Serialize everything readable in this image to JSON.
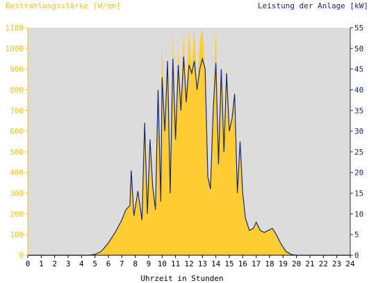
{
  "chart_data": {
    "type": "area",
    "title": "",
    "left_axis_label": "Bestrahlungsstärke [W/qm]",
    "right_axis_label": "Leistung der Anlage [kW]",
    "xlabel": "Uhrzeit in Stunden",
    "xlim": [
      0,
      24
    ],
    "ylim_left": [
      0,
      1100
    ],
    "ylim_right": [
      0,
      55
    ],
    "x_ticks": [
      "0",
      "1",
      "2",
      "3",
      "4",
      "5",
      "6",
      "7",
      "8",
      "9",
      "10",
      "11",
      "12",
      "13",
      "14",
      "15",
      "16",
      "17",
      "18",
      "19",
      "20",
      "21",
      "22",
      "23",
      "24"
    ],
    "y_left_ticks": [
      "0",
      "100",
      "200",
      "300",
      "400",
      "500",
      "600",
      "700",
      "800",
      "900",
      "1000",
      "1100"
    ],
    "y_right_ticks": [
      "0",
      "5",
      "10",
      "15",
      "20",
      "25",
      "30",
      "35",
      "40",
      "45",
      "50",
      "55"
    ],
    "grid": false,
    "colors": {
      "plot_background": "#dcdcdc",
      "irradiance_fill": "#ffcc33",
      "power_line": "#1a2a6c",
      "left_axis_text": "#f0c020",
      "right_axis_text": "#1a2a6c",
      "axis": "#000000"
    },
    "series": [
      {
        "name": "Bestrahlungsstärke [W/qm]",
        "axis": "left",
        "style": "filled-area",
        "x": [
          0,
          4.5,
          5,
          5.5,
          6,
          6.5,
          7,
          7.3,
          7.6,
          7.7,
          7.9,
          8.2,
          8.5,
          8.7,
          8.9,
          9.1,
          9.3,
          9.5,
          9.7,
          9.9,
          10.0,
          10.2,
          10.4,
          10.6,
          10.8,
          11.0,
          11.2,
          11.4,
          11.6,
          11.8,
          12.0,
          12.2,
          12.4,
          12.6,
          12.8,
          13.0,
          13.2,
          13.4,
          13.6,
          13.8,
          14.0,
          14.2,
          14.4,
          14.6,
          14.8,
          15.0,
          15.2,
          15.4,
          15.6,
          15.8,
          16.0,
          16.2,
          16.5,
          16.8,
          17.0,
          17.3,
          17.6,
          17.9,
          18.2,
          18.5,
          18.8,
          19.2,
          19.6,
          20.0,
          24
        ],
        "y": [
          0,
          0,
          5,
          20,
          60,
          110,
          170,
          220,
          240,
          400,
          200,
          310,
          170,
          640,
          200,
          560,
          330,
          220,
          800,
          260,
          1050,
          600,
          940,
          300,
          1080,
          560,
          1000,
          700,
          1080,
          750,
          1100,
          900,
          1100,
          800,
          1040,
          1100,
          900,
          380,
          300,
          700,
          1100,
          450,
          900,
          500,
          920,
          600,
          650,
          800,
          300,
          550,
          300,
          180,
          120,
          130,
          160,
          120,
          110,
          120,
          130,
          100,
          60,
          20,
          5,
          0,
          0
        ]
      },
      {
        "name": "Leistung der Anlage [kW]",
        "axis": "right",
        "style": "line",
        "x": [
          0,
          4.5,
          5,
          5.5,
          6,
          6.5,
          7,
          7.3,
          7.6,
          7.7,
          7.9,
          8.2,
          8.5,
          8.7,
          8.9,
          9.1,
          9.3,
          9.5,
          9.7,
          9.9,
          10.0,
          10.2,
          10.4,
          10.6,
          10.8,
          11.0,
          11.2,
          11.4,
          11.6,
          11.8,
          12.0,
          12.2,
          12.4,
          12.6,
          12.8,
          13.0,
          13.2,
          13.4,
          13.6,
          13.8,
          14.0,
          14.2,
          14.4,
          14.6,
          14.8,
          15.0,
          15.2,
          15.4,
          15.6,
          15.8,
          16.0,
          16.2,
          16.5,
          16.8,
          17.0,
          17.3,
          17.6,
          17.9,
          18.2,
          18.5,
          18.8,
          19.2,
          19.6,
          20.0,
          24
        ],
        "y": [
          0,
          0,
          0.2,
          1,
          3,
          5.5,
          8.5,
          11,
          12,
          20.5,
          9.5,
          15.5,
          8.5,
          32,
          10,
          28,
          16.5,
          11,
          40,
          13,
          43,
          30,
          47,
          15,
          47.5,
          28,
          46,
          35,
          48,
          37,
          46,
          44,
          47,
          40,
          45,
          47.5,
          45,
          19,
          16,
          35,
          46.5,
          22,
          45,
          25,
          44,
          30,
          33,
          39,
          15,
          27.5,
          15,
          9,
          6,
          6.5,
          8,
          6,
          5.5,
          6,
          6.5,
          5,
          3,
          1,
          0.2,
          0,
          0
        ]
      }
    ]
  }
}
